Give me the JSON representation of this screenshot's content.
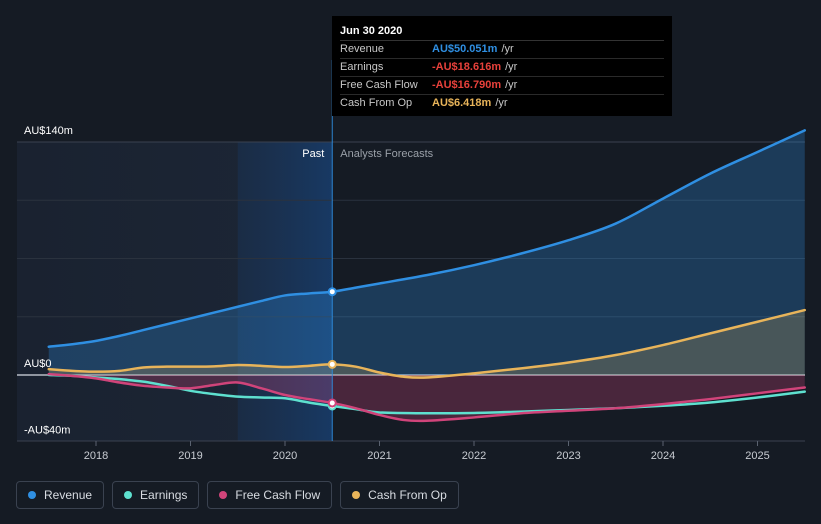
{
  "chart_data": {
    "type": "area",
    "title": "",
    "xlabel": "",
    "ylabel": "",
    "ylim": [
      -40,
      140
    ],
    "xlim": [
      2017.5,
      2025.5
    ],
    "y_ticks": [
      {
        "value": 140,
        "label": "AU$140m"
      },
      {
        "value": 0,
        "label": "AU$0"
      },
      {
        "value": -40,
        "label": "-AU$40m"
      }
    ],
    "x_ticks": [
      2018,
      2019,
      2020,
      2021,
      2022,
      2023,
      2024,
      2025
    ],
    "x_tick_labels": [
      "2018",
      "2019",
      "2020",
      "2021",
      "2022",
      "2023",
      "2024",
      "2025"
    ],
    "divider_x": 2020.5,
    "highlight_start": 2019.5,
    "past_label": "Past",
    "forecast_label": "Analysts Forecasts",
    "series": [
      {
        "name": "Revenue",
        "color": "#2f8fe2",
        "points": [
          [
            2017.5,
            17
          ],
          [
            2017.75,
            18.5
          ],
          [
            2018.0,
            20.5
          ],
          [
            2018.25,
            23.5
          ],
          [
            2018.5,
            27
          ],
          [
            2018.75,
            30.5
          ],
          [
            2019.0,
            34
          ],
          [
            2019.25,
            37.5
          ],
          [
            2019.5,
            41
          ],
          [
            2019.75,
            44.5
          ],
          [
            2020.0,
            47.8
          ],
          [
            2020.25,
            49
          ],
          [
            2020.5,
            50.05
          ],
          [
            2020.75,
            52.5
          ],
          [
            2021.0,
            55
          ],
          [
            2021.5,
            60
          ],
          [
            2022.0,
            66
          ],
          [
            2022.5,
            73
          ],
          [
            2023.0,
            81
          ],
          [
            2023.5,
            91
          ],
          [
            2024.0,
            106
          ],
          [
            2024.5,
            121
          ],
          [
            2025.0,
            134
          ],
          [
            2025.5,
            147
          ]
        ]
      },
      {
        "name": "Earnings",
        "color": "#5ee0cf",
        "points": [
          [
            2017.5,
            0
          ],
          [
            2017.75,
            -0.5
          ],
          [
            2018.0,
            -1.5
          ],
          [
            2018.25,
            -2.5
          ],
          [
            2018.5,
            -4
          ],
          [
            2018.75,
            -6.5
          ],
          [
            2019.0,
            -9.5
          ],
          [
            2019.25,
            -11.5
          ],
          [
            2019.5,
            -13
          ],
          [
            2019.75,
            -13.5
          ],
          [
            2020.0,
            -14
          ],
          [
            2020.25,
            -16.5
          ],
          [
            2020.5,
            -18.6
          ],
          [
            2020.75,
            -20.5
          ],
          [
            2021.0,
            -22.5
          ],
          [
            2021.5,
            -23
          ],
          [
            2022.0,
            -22.8
          ],
          [
            2022.5,
            -22
          ],
          [
            2023.0,
            -21
          ],
          [
            2023.5,
            -20
          ],
          [
            2024.0,
            -18.5
          ],
          [
            2024.5,
            -16.5
          ],
          [
            2025.0,
            -13.5
          ],
          [
            2025.5,
            -10
          ]
        ]
      },
      {
        "name": "Free Cash Flow",
        "color": "#d0447a",
        "points": [
          [
            2017.5,
            0.5
          ],
          [
            2017.75,
            -0.5
          ],
          [
            2018.0,
            -2
          ],
          [
            2018.25,
            -4.5
          ],
          [
            2018.5,
            -6.5
          ],
          [
            2018.75,
            -7.5
          ],
          [
            2019.0,
            -8
          ],
          [
            2019.25,
            -6
          ],
          [
            2019.5,
            -4.5
          ],
          [
            2019.75,
            -8
          ],
          [
            2020.0,
            -12
          ],
          [
            2020.25,
            -14.5
          ],
          [
            2020.5,
            -16.8
          ],
          [
            2020.75,
            -20
          ],
          [
            2021.0,
            -24
          ],
          [
            2021.25,
            -27
          ],
          [
            2021.5,
            -27.5
          ],
          [
            2022.0,
            -25.5
          ],
          [
            2022.5,
            -23
          ],
          [
            2023.0,
            -21.5
          ],
          [
            2023.5,
            -20
          ],
          [
            2024.0,
            -17.5
          ],
          [
            2024.5,
            -14.5
          ],
          [
            2025.0,
            -11
          ],
          [
            2025.5,
            -7.5
          ]
        ]
      },
      {
        "name": "Cash From Op",
        "color": "#e8b45a",
        "points": [
          [
            2017.5,
            3.5
          ],
          [
            2017.75,
            2.5
          ],
          [
            2018.0,
            2
          ],
          [
            2018.25,
            2.5
          ],
          [
            2018.5,
            4.5
          ],
          [
            2018.75,
            5
          ],
          [
            2019.0,
            5
          ],
          [
            2019.25,
            5.2
          ],
          [
            2019.5,
            6
          ],
          [
            2019.75,
            5.5
          ],
          [
            2020.0,
            4.8
          ],
          [
            2020.25,
            5.5
          ],
          [
            2020.5,
            6.42
          ],
          [
            2020.75,
            5
          ],
          [
            2021.0,
            1.5
          ],
          [
            2021.25,
            -1
          ],
          [
            2021.5,
            -1.5
          ],
          [
            2022.0,
            1
          ],
          [
            2022.5,
            4
          ],
          [
            2023.0,
            7.5
          ],
          [
            2023.5,
            12
          ],
          [
            2024.0,
            18
          ],
          [
            2024.5,
            25
          ],
          [
            2025.0,
            32
          ],
          [
            2025.5,
            39
          ]
        ]
      }
    ]
  },
  "tooltip": {
    "title": "Jun 30 2020",
    "rows": [
      {
        "label": "Revenue",
        "value": "AU$50.051m",
        "unit": "/yr",
        "color": "#2f8fe2"
      },
      {
        "label": "Earnings",
        "value": "-AU$18.616m",
        "unit": "/yr",
        "color": "#e8413b"
      },
      {
        "label": "Free Cash Flow",
        "value": "-AU$16.790m",
        "unit": "/yr",
        "color": "#e8413b"
      },
      {
        "label": "Cash From Op",
        "value": "AU$6.418m",
        "unit": "/yr",
        "color": "#e8b45a"
      }
    ]
  },
  "legend": [
    {
      "label": "Revenue",
      "color": "#2f8fe2"
    },
    {
      "label": "Earnings",
      "color": "#5ee0cf"
    },
    {
      "label": "Free Cash Flow",
      "color": "#d0447a"
    },
    {
      "label": "Cash From Op",
      "color": "#e8b45a"
    }
  ]
}
